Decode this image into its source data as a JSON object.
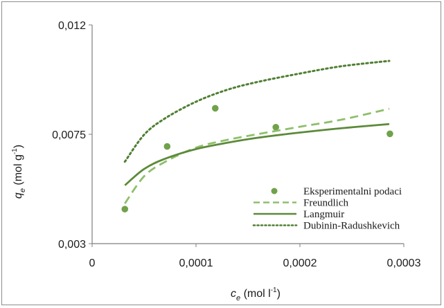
{
  "chart_data": {
    "type": "scatter",
    "x_axis": {
      "label": "c",
      "label_sub": "e",
      "label_unit_pre": " (mol l",
      "label_unit_sup": "-1",
      "label_unit_post": ")",
      "range": [
        0,
        0.0003
      ],
      "ticks": [
        0,
        0.0001,
        0.0002,
        0.0003
      ],
      "tick_labels": [
        "0",
        "0,0001",
        "0,0002",
        "0,0003"
      ]
    },
    "y_axis": {
      "label": "q",
      "label_sub": "e",
      "label_unit_pre": " (mol g",
      "label_unit_sup": "-1",
      "label_unit_post": ")",
      "range": [
        0.003,
        0.012
      ],
      "ticks": [
        0.003,
        0.0075,
        0.012
      ],
      "tick_labels": [
        "0,003",
        "0,0075",
        "0,012"
      ]
    },
    "grid": false,
    "legend_position": "bottom-right",
    "series": [
      {
        "name": "Eksperimentalni podaci",
        "kind": "points",
        "color": "#70a24a",
        "x": [
          3.15e-05,
          7.22e-05,
          0.0001185,
          0.0001768,
          0.0002866
        ],
        "y": [
          0.00442,
          0.007,
          0.00857,
          0.00779,
          0.00752
        ]
      },
      {
        "name": "Freundlich",
        "kind": "line",
        "style": "dashed",
        "color": "#8dbf6b",
        "x": [
          3.15e-05,
          5e-05,
          7e-05,
          0.0001,
          0.00013,
          0.00016,
          0.0002,
          0.00024,
          0.000286
        ],
        "y": [
          0.00465,
          0.00577,
          0.00636,
          0.00695,
          0.00727,
          0.00751,
          0.00781,
          0.0081,
          0.00855
        ]
      },
      {
        "name": "Langmuir",
        "kind": "line",
        "style": "solid",
        "color": "#5c8a3a",
        "x": [
          3.15e-05,
          5e-05,
          7e-05,
          0.0001,
          0.00013,
          0.00016,
          0.0002,
          0.00024,
          0.000286
        ],
        "y": [
          0.0054,
          0.00607,
          0.00649,
          0.00689,
          0.00715,
          0.00736,
          0.00757,
          0.00775,
          0.00792
        ]
      },
      {
        "name": "Dubinin-Radushkevich",
        "kind": "line",
        "style": "dotted",
        "color": "#4f7f32",
        "x": [
          3.15e-05,
          5e-05,
          7e-05,
          0.0001,
          0.00013,
          0.00016,
          0.0002,
          0.00024,
          0.000286
        ],
        "y": [
          0.00637,
          0.00748,
          0.00815,
          0.00884,
          0.00933,
          0.00966,
          0.01,
          0.0103,
          0.01052
        ]
      }
    ]
  }
}
